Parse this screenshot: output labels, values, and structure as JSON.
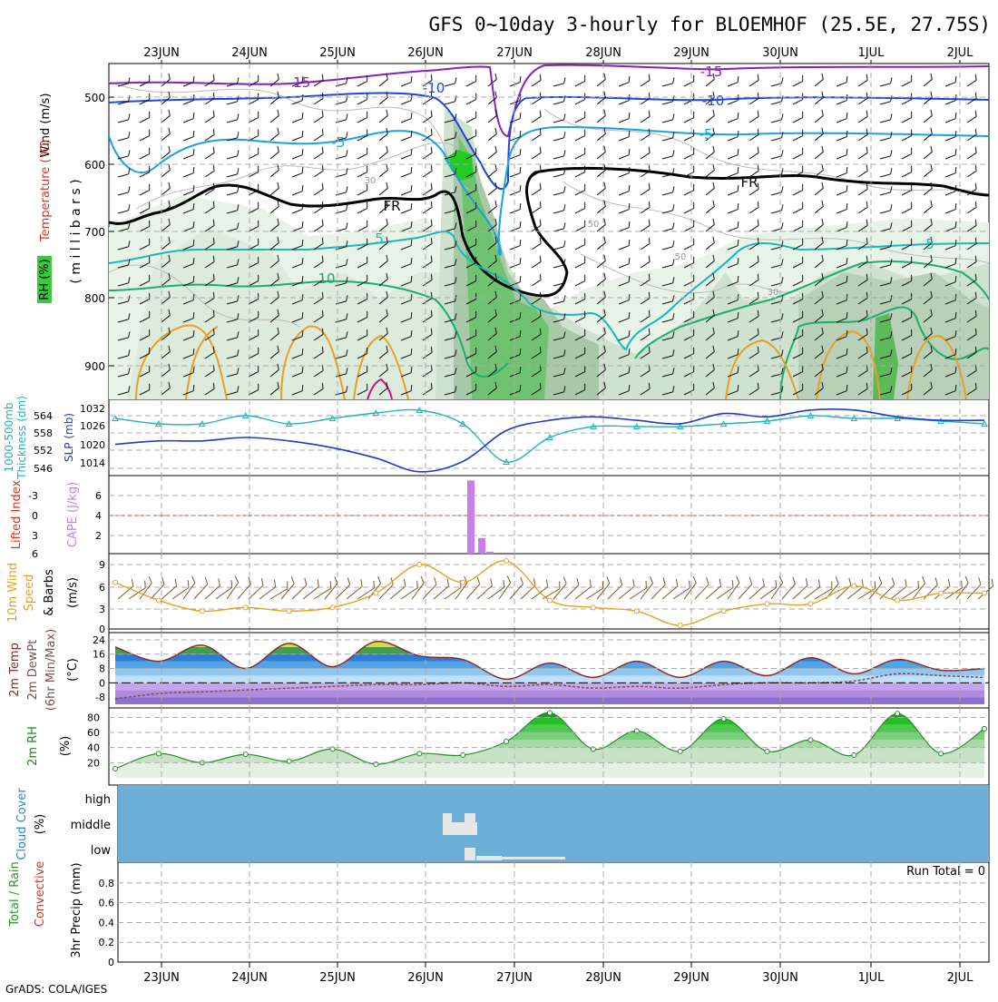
{
  "title": "GFS 0~10day 3-hourly for BLOEMHOF (25.5E, 27.75S)",
  "credit": "GrADS: COLA/IGES",
  "date_labels": [
    "23JUN",
    "24JUN",
    "25JUN",
    "26JUN",
    "27JUN",
    "28JUN",
    "29JUN",
    "30JUN",
    "1JUL",
    "2JUL"
  ],
  "colors": {
    "purple": "#8a1fbf",
    "blue": "#1e46e0",
    "cyan": "#19a2e0",
    "teal": "#17b8b8",
    "green": "#18b06a",
    "orange": "#e8a020",
    "black": "#000000",
    "sky": "#6baed6",
    "cape": "#c77ee8",
    "rhgreen": "#3cc83c"
  },
  "panels": {
    "upper": {
      "ylabel_parts": [
        "Wind (m/s)",
        "Temperature (°C)",
        "RH (%)",
        "( m i l l i b a r s )"
      ],
      "ticks": [
        "500",
        "600",
        "700",
        "800",
        "900"
      ],
      "contour_labels": [
        "-15",
        "-10",
        "-5",
        "FR",
        "5",
        "10",
        "30",
        "50",
        "-15",
        "-10",
        "-5",
        "FR",
        "5",
        "30",
        "50"
      ]
    },
    "slp": {
      "ylabel_left": [
        "1000-500mb",
        "Thickness (dm)"
      ],
      "ylabel_right": "SLP (mb)",
      "left_ticks": [
        "564",
        "558",
        "552",
        "546"
      ],
      "right_ticks": [
        "1032",
        "1026",
        "1020",
        "1014"
      ]
    },
    "cape": {
      "ylabel_left": "Lifted Index",
      "ylabel_right": "CAPE (J/kg)",
      "left_ticks": [
        "-3",
        "0",
        "3",
        "6"
      ],
      "right_ticks": [
        "6",
        "4",
        "2"
      ]
    },
    "wind10": {
      "ylabel": [
        "10m Wind",
        "Speed",
        "& Barbs",
        "(m/s)"
      ],
      "ticks": [
        "9",
        "6",
        "3",
        "0"
      ]
    },
    "temp2m": {
      "ylabel": [
        "2m Temp",
        "2m DewPt",
        "(6hr Min/Max)",
        "(°C)"
      ],
      "ticks": [
        "24",
        "16",
        "8",
        "0",
        "-8"
      ]
    },
    "rh2m": {
      "ylabel": [
        "2m RH",
        "(%)"
      ],
      "ticks": [
        "80",
        "60",
        "40",
        "20"
      ]
    },
    "cloud": {
      "ylabel": [
        "Cloud Cover",
        "(%)"
      ],
      "ticks": [
        "high",
        "middle",
        "low"
      ]
    },
    "precip": {
      "ylabel": [
        "Total / Rain",
        "Convective",
        "3hr Precip (mm)"
      ],
      "ticks": [
        "0.8",
        "0.6",
        "0.4",
        "0.2",
        "0"
      ],
      "run_total": "Run Total = 0"
    }
  },
  "chart_data": [
    {
      "type": "line",
      "title": "1000-500mb Thickness (dm) and SLP (mb)",
      "x": [
        "22JUN 12Z",
        "23JUN 00Z",
        "23JUN 12Z",
        "24JUN 00Z",
        "24JUN 12Z",
        "25JUN 00Z",
        "25JUN 12Z",
        "26JUN 00Z",
        "26JUN 12Z",
        "27JUN 00Z",
        "27JUN 12Z",
        "28JUN 00Z",
        "28JUN 12Z",
        "29JUN 00Z",
        "29JUN 12Z",
        "30JUN 00Z",
        "30JUN 12Z",
        "1JUL 00Z",
        "1JUL 12Z",
        "2JUL 00Z",
        "2JUL 06Z"
      ],
      "series": [
        {
          "name": "Thickness (dm)",
          "values": [
            563,
            561,
            561,
            564,
            561,
            563,
            565,
            566,
            561,
            547,
            556,
            560,
            560,
            560,
            561,
            562,
            564,
            563,
            563,
            562,
            561
          ]
        },
        {
          "name": "SLP (mb)",
          "values": [
            1021,
            1022,
            1022,
            1023,
            1022,
            1020,
            1017,
            1013,
            1016,
            1025,
            1028,
            1029,
            1028,
            1027,
            1030,
            1029,
            1031,
            1031,
            1029,
            1028,
            1028
          ]
        }
      ]
    },
    {
      "type": "bar",
      "title": "CAPE (J/kg)",
      "categories": [
        "26JUN 12Z",
        "26JUN 15Z",
        "26JUN 18Z"
      ],
      "values": [
        7.5,
        1.6,
        0.2
      ]
    },
    {
      "type": "line",
      "title": "10m Wind Speed (m/s)",
      "x": [
        "22JUN 12Z",
        "23JUN 00Z",
        "23JUN 12Z",
        "24JUN 00Z",
        "24JUN 12Z",
        "25JUN 00Z",
        "25JUN 12Z",
        "26JUN 00Z",
        "26JUN 12Z",
        "27JUN 00Z",
        "27JUN 12Z",
        "28JUN 00Z",
        "28JUN 12Z",
        "29JUN 00Z",
        "29JUN 12Z",
        "30JUN 00Z",
        "30JUN 12Z",
        "1JUL 00Z",
        "1JUL 12Z",
        "2JUL 00Z",
        "2JUL 06Z"
      ],
      "series": [
        {
          "name": "10m Wind",
          "values": [
            6.5,
            4,
            2.5,
            3,
            2.5,
            3,
            5,
            9,
            6.5,
            9.5,
            4,
            3,
            2.5,
            0.5,
            2.5,
            3.5,
            3.5,
            6,
            4,
            5,
            5
          ]
        }
      ]
    },
    {
      "type": "area",
      "title": "2m Temp / 2m DewPt (°C)",
      "x": [
        "22JUN 12Z",
        "23JUN 00Z",
        "23JUN 12Z",
        "24JUN 00Z",
        "24JUN 12Z",
        "25JUN 00Z",
        "25JUN 12Z",
        "26JUN 00Z",
        "26JUN 12Z",
        "27JUN 00Z",
        "27JUN 12Z",
        "28JUN 00Z",
        "28JUN 12Z",
        "29JUN 00Z",
        "29JUN 12Z",
        "30JUN 00Z",
        "30JUN 12Z",
        "1JUL 00Z",
        "1JUL 12Z",
        "2JUL 00Z",
        "2JUL 06Z"
      ],
      "series": [
        {
          "name": "2m Temp",
          "values": [
            20,
            12,
            21,
            8,
            22,
            9,
            23,
            15,
            13,
            2,
            11,
            3,
            12,
            3,
            12,
            4,
            14,
            5,
            13,
            7,
            8
          ]
        },
        {
          "name": "2m DewPt",
          "values": [
            -9,
            -6,
            -5,
            -4,
            -3,
            -2,
            -1,
            -1,
            0,
            -2,
            -1,
            -3,
            -2,
            -3,
            -1,
            0,
            0,
            1,
            5,
            4,
            3
          ]
        }
      ],
      "ylim": [
        -12,
        26
      ]
    },
    {
      "type": "area",
      "title": "2m RH (%)",
      "x": [
        "22JUN 12Z",
        "23JUN 00Z",
        "23JUN 12Z",
        "24JUN 00Z",
        "24JUN 12Z",
        "25JUN 00Z",
        "25JUN 12Z",
        "26JUN 00Z",
        "26JUN 12Z",
        "27JUN 00Z",
        "27JUN 12Z",
        "28JUN 00Z",
        "28JUN 12Z",
        "29JUN 00Z",
        "29JUN 12Z",
        "30JUN 00Z",
        "30JUN 12Z",
        "1JUL 00Z",
        "1JUL 12Z",
        "2JUL 00Z",
        "2JUL 06Z"
      ],
      "series": [
        {
          "name": "2m RH",
          "values": [
            12,
            32,
            20,
            31,
            22,
            38,
            18,
            32,
            30,
            48,
            86,
            38,
            62,
            35,
            78,
            35,
            50,
            30,
            85,
            32,
            65
          ]
        }
      ],
      "ylim": [
        0,
        90
      ]
    },
    {
      "type": "bar",
      "title": "3hr Precip (mm)",
      "categories": [],
      "values": [],
      "ylim": [
        0,
        1
      ]
    }
  ]
}
